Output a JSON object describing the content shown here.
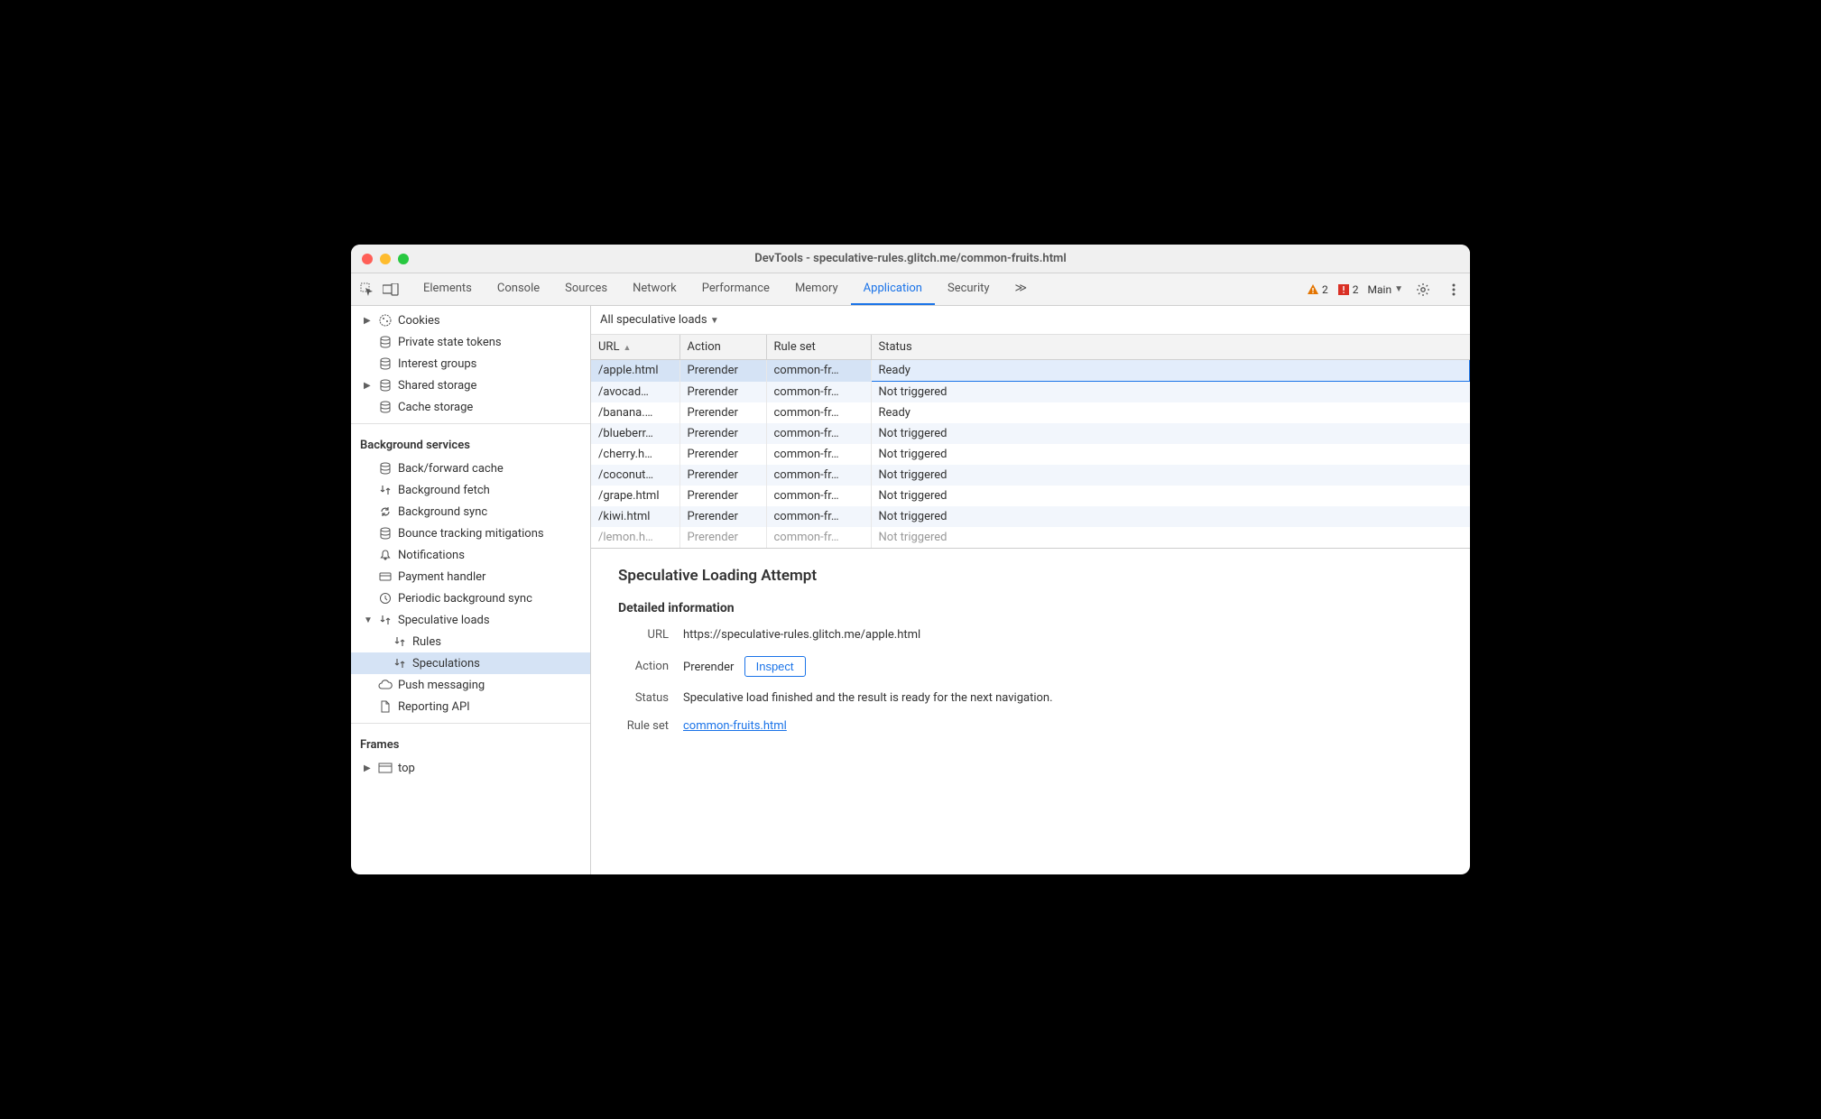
{
  "window": {
    "title": "DevTools - speculative-rules.glitch.me/common-fruits.html"
  },
  "tabs": {
    "items": [
      "Elements",
      "Console",
      "Sources",
      "Network",
      "Performance",
      "Memory",
      "Application",
      "Security"
    ],
    "active": "Application",
    "overflow_glyph": "≫",
    "warnings_count": "2",
    "errors_count": "2",
    "context_label": "Main"
  },
  "sidebar": {
    "storage": {
      "cookies": "Cookies",
      "private_tokens": "Private state tokens",
      "interest_groups": "Interest groups",
      "shared_storage": "Shared storage",
      "cache_storage": "Cache storage"
    },
    "bg_services_title": "Background services",
    "bg": {
      "bfcache": "Back/forward cache",
      "bgfetch": "Background fetch",
      "bgsync": "Background sync",
      "bounce": "Bounce tracking mitigations",
      "notifications": "Notifications",
      "payment": "Payment handler",
      "periodic": "Periodic background sync",
      "specloads": "Speculative loads",
      "rules": "Rules",
      "speculations": "Speculations",
      "push": "Push messaging",
      "reporting": "Reporting API"
    },
    "frames_title": "Frames",
    "frames": {
      "top": "top"
    }
  },
  "filter": {
    "label": "All speculative loads"
  },
  "table": {
    "columns": {
      "url": "URL",
      "action": "Action",
      "ruleset": "Rule set",
      "status": "Status"
    },
    "col_widths": {
      "url": 98,
      "action": 96,
      "ruleset": 116,
      "status": 660
    },
    "rows": [
      {
        "url": "/apple.html",
        "action": "Prerender",
        "ruleset": "common-fr…",
        "status": "Ready",
        "selected": true
      },
      {
        "url": "/avocad…",
        "action": "Prerender",
        "ruleset": "common-fr…",
        "status": "Not triggered"
      },
      {
        "url": "/banana.…",
        "action": "Prerender",
        "ruleset": "common-fr…",
        "status": "Ready"
      },
      {
        "url": "/blueberr…",
        "action": "Prerender",
        "ruleset": "common-fr…",
        "status": "Not triggered"
      },
      {
        "url": "/cherry.h…",
        "action": "Prerender",
        "ruleset": "common-fr…",
        "status": "Not triggered"
      },
      {
        "url": "/coconut…",
        "action": "Prerender",
        "ruleset": "common-fr…",
        "status": "Not triggered"
      },
      {
        "url": "/grape.html",
        "action": "Prerender",
        "ruleset": "common-fr…",
        "status": "Not triggered"
      },
      {
        "url": "/kiwi.html",
        "action": "Prerender",
        "ruleset": "common-fr…",
        "status": "Not triggered"
      },
      {
        "url": "/lemon.h…",
        "action": "Prerender",
        "ruleset": "common-fr…",
        "status": "Not triggered",
        "partial": true
      }
    ]
  },
  "detail": {
    "title": "Speculative Loading Attempt",
    "subtitle": "Detailed information",
    "labels": {
      "url": "URL",
      "action": "Action",
      "status": "Status",
      "ruleset": "Rule set"
    },
    "url": "https://speculative-rules.glitch.me/apple.html",
    "action": "Prerender",
    "inspect": "Inspect",
    "status": "Speculative load finished and the result is ready for the next navigation.",
    "ruleset": "common-fruits.html"
  },
  "colors": {
    "accent": "#1a73e8",
    "warning": "#e37400",
    "error": "#d93025",
    "selected_bg": "#d5e3f5"
  }
}
